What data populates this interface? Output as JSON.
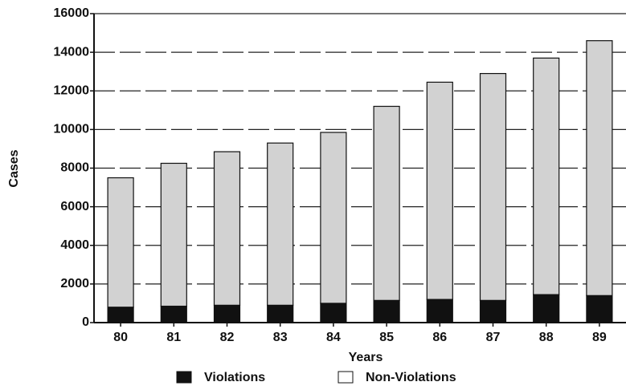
{
  "chart_data": {
    "type": "stacked_bar",
    "x_label": "Years",
    "y_label": "Cases",
    "categories": [
      "80",
      "81",
      "82",
      "83",
      "84",
      "85",
      "86",
      "87",
      "88",
      "89"
    ],
    "series": [
      {
        "name": "Violations",
        "color": "#111111",
        "values": [
          800,
          850,
          900,
          900,
          1000,
          1150,
          1200,
          1150,
          1450,
          1400
        ]
      },
      {
        "name": "Non-Violations",
        "color": "#d2d2d2",
        "values": [
          6700,
          7400,
          7950,
          8400,
          8850,
          10050,
          11250,
          11750,
          12250,
          13200
        ]
      }
    ],
    "ylim": [
      0,
      16000
    ],
    "yticks": [
      0,
      2000,
      4000,
      6000,
      8000,
      10000,
      12000,
      14000,
      16000
    ],
    "grid": true
  }
}
